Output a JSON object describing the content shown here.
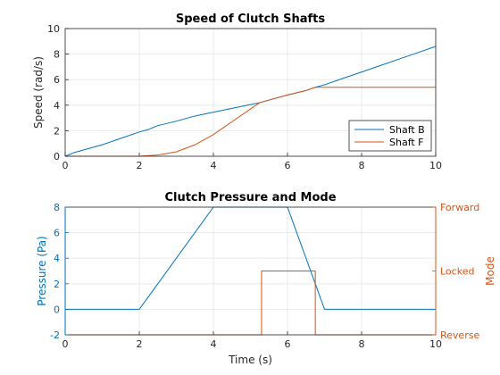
{
  "chart_data": [
    {
      "type": "line",
      "title": "Speed of Clutch Shafts",
      "xlabel": "",
      "ylabel": "Speed (rad/s)",
      "xlim": [
        0,
        10
      ],
      "ylim": [
        0,
        10
      ],
      "xticks": [
        0,
        2,
        4,
        6,
        8,
        10
      ],
      "yticks": [
        0,
        2,
        4,
        6,
        8,
        10
      ],
      "grid": true,
      "legend_position": "bottom-right",
      "series": [
        {
          "name": "Shaft B",
          "color": "#0072BD",
          "x": [
            0,
            0.25,
            0.5,
            1,
            1.5,
            2,
            2.25,
            2.5,
            3,
            3.5,
            4,
            4.5,
            5,
            5.25,
            5.5,
            6,
            6.5,
            6.75,
            7,
            7.5,
            8,
            8.5,
            9,
            9.5,
            10
          ],
          "y": [
            0,
            0.3,
            0.5,
            0.9,
            1.4,
            1.9,
            2.1,
            2.4,
            2.75,
            3.15,
            3.45,
            3.75,
            4.05,
            4.2,
            4.4,
            4.8,
            5.15,
            5.4,
            5.6,
            6.1,
            6.6,
            7.1,
            7.6,
            8.1,
            8.6
          ]
        },
        {
          "name": "Shaft F",
          "color": "#D95319",
          "x": [
            0,
            2,
            2.25,
            2.5,
            3,
            3.5,
            4,
            4.5,
            5,
            5.25,
            5.5,
            6,
            6.5,
            6.75,
            7,
            8,
            9,
            10
          ],
          "y": [
            0,
            0,
            0.05,
            0.1,
            0.35,
            0.9,
            1.7,
            2.7,
            3.7,
            4.2,
            4.4,
            4.8,
            5.15,
            5.4,
            5.4,
            5.4,
            5.4,
            5.4
          ]
        }
      ]
    },
    {
      "type": "line",
      "title": "Clutch Pressure and Mode",
      "xlabel": "Time (s)",
      "ylabel": "Pressure (Pa)",
      "y2label": "Mode",
      "xlim": [
        0,
        10
      ],
      "ylim": [
        -2,
        8
      ],
      "xticks": [
        0,
        2,
        4,
        6,
        8,
        10
      ],
      "yticks": [
        -2,
        0,
        2,
        4,
        6,
        8
      ],
      "y2_categories": [
        "Reverse",
        "Locked",
        "Forward"
      ],
      "grid": true,
      "series": [
        {
          "name": "Pressure",
          "axis": "left",
          "color": "#0072BD",
          "x": [
            0,
            2,
            4,
            6,
            7,
            10
          ],
          "y": [
            0,
            0,
            8,
            8,
            0,
            0
          ]
        },
        {
          "name": "Mode",
          "axis": "right",
          "color": "#D95319",
          "x": [
            0,
            5.3,
            5.3,
            6.75,
            6.75,
            10
          ],
          "y": [
            "Reverse",
            "Reverse",
            "Locked",
            "Locked",
            "Reverse",
            "Reverse"
          ]
        }
      ]
    }
  ]
}
